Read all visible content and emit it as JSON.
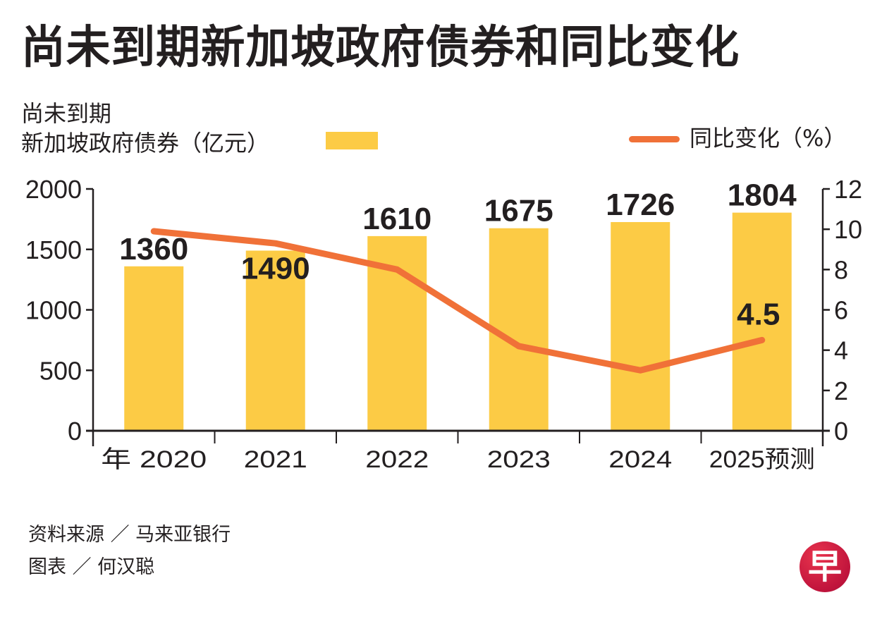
{
  "title": "尚未到期新加坡政府债券和同比变化",
  "legend": {
    "bars_label_line1": "尚未到期",
    "bars_label_line2": "新加坡政府债券（亿元）",
    "line_label": "同比变化（%）"
  },
  "colors": {
    "bar": "#fccb45",
    "line": "#f07138",
    "text": "#231f20",
    "axis": "#231f20",
    "logo": "#c8173f"
  },
  "chart_data": {
    "type": "bar",
    "title": "尚未到期新加坡政府债券和同比变化",
    "xlabel": "年",
    "categories": [
      "2020",
      "2021",
      "2022",
      "2023",
      "2024",
      "2025预测"
    ],
    "x_prefix": "年",
    "series": [
      {
        "name": "尚未到期新加坡政府债券（亿元）",
        "type": "bar",
        "axis": "left",
        "values": [
          1360,
          1490,
          1610,
          1675,
          1726,
          1804
        ],
        "labels": [
          "1360",
          "1490",
          "1610",
          "1675",
          "1726",
          "1804"
        ]
      },
      {
        "name": "同比变化（%）",
        "type": "line",
        "axis": "right",
        "values": [
          9.9,
          9.3,
          8.0,
          4.2,
          3.0,
          4.5
        ],
        "labels": [
          "",
          "",
          "",
          "",
          "",
          "4.5"
        ]
      }
    ],
    "y_left": {
      "label": "亿元",
      "range": [
        0,
        2000
      ],
      "ticks": [
        0,
        500,
        1000,
        1500,
        2000
      ]
    },
    "y_right": {
      "label": "%",
      "range": [
        0,
        12
      ],
      "ticks": [
        0,
        2,
        4,
        6,
        8,
        10,
        12
      ]
    },
    "grid": false,
    "legend_placement": "top"
  },
  "footer": {
    "source": "资料来源 ／ 马来亚银行",
    "credit": "图表 ／ 何汉聪"
  },
  "logo": {
    "glyph": "早",
    "icon": "zaobao-logo-icon"
  }
}
